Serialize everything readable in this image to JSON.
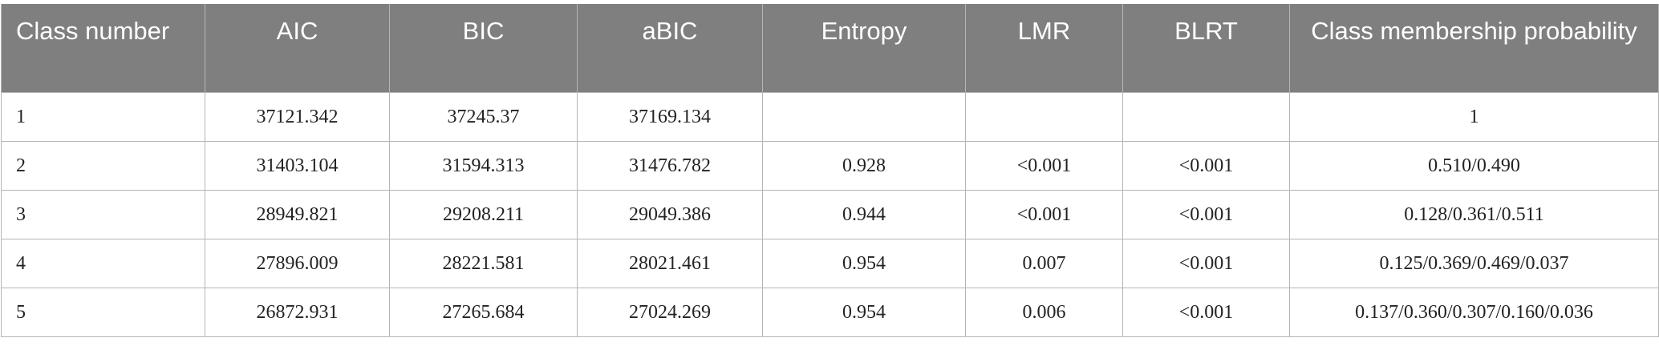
{
  "table": {
    "header": [
      "Class number",
      "AIC",
      "BIC",
      "aBIC",
      "Entropy",
      "LMR",
      "BLRT",
      "Class membership probability"
    ],
    "rows": [
      [
        "1",
        "37121.342",
        "37245.37",
        "37169.134",
        null,
        null,
        null,
        "1"
      ],
      [
        "2",
        "31403.104",
        "31594.313",
        "31476.782",
        "0.928",
        "<0.001",
        "<0.001",
        "0.510/0.490"
      ],
      [
        "3",
        "28949.821",
        "29208.211",
        "29049.386",
        "0.944",
        "<0.001",
        "<0.001",
        "0.128/0.361/0.511"
      ],
      [
        "4",
        "27896.009",
        "28221.581",
        "28021.461",
        "0.954",
        "0.007",
        "<0.001",
        "0.125/0.369/0.469/0.037"
      ],
      [
        "5",
        "26872.931",
        "27265.684",
        "27024.269",
        "0.954",
        "0.006",
        "<0.001",
        "0.137/0.360/0.307/0.160/0.036"
      ]
    ]
  }
}
